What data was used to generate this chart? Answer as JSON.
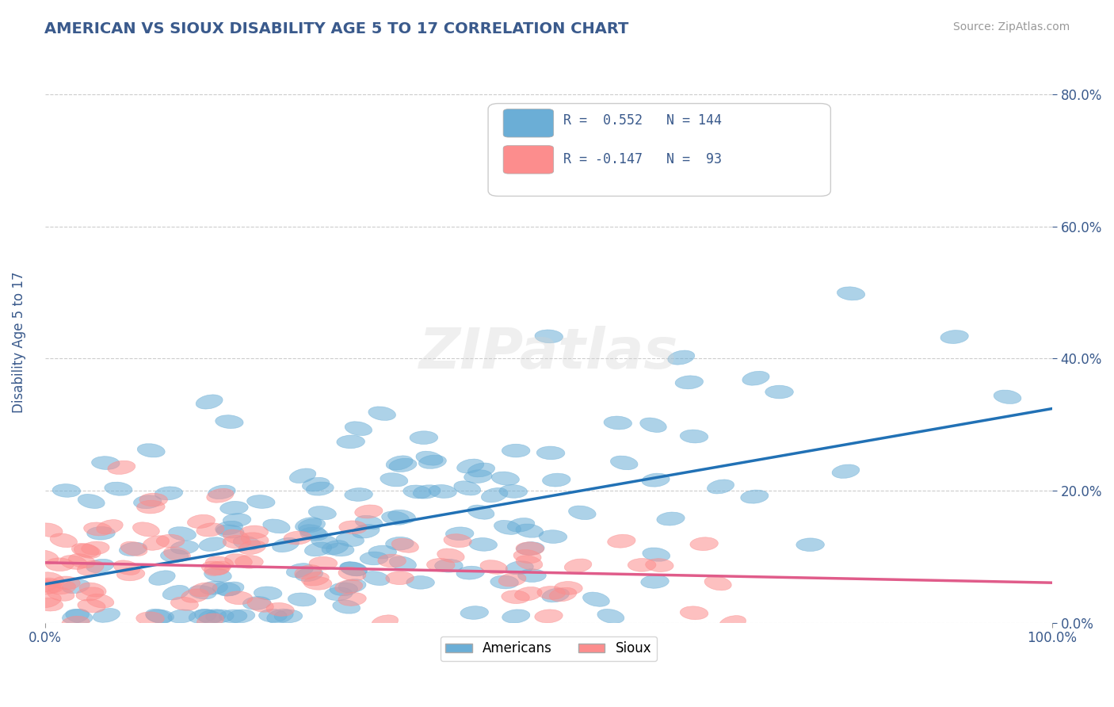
{
  "title": "AMERICAN VS SIOUX DISABILITY AGE 5 TO 17 CORRELATION CHART",
  "source": "Source: ZipAtlas.com",
  "ylabel": "Disability Age 5 to 17",
  "xlim": [
    0,
    1.0
  ],
  "ylim": [
    0,
    0.85
  ],
  "yticks": [
    0.0,
    0.2,
    0.4,
    0.6,
    0.8
  ],
  "ytick_labels": [
    "0.0%",
    "20.0%",
    "40.0%",
    "60.0%",
    "80.0%"
  ],
  "xtick_labels": [
    "0.0%",
    "100.0%"
  ],
  "color_american": "#6baed6",
  "color_sioux": "#fc8d8d",
  "color_trend_american": "#2171b5",
  "color_trend_sioux": "#e05c8a",
  "watermark": "ZIPatlas",
  "title_color": "#3a5a8c",
  "axis_color": "#3a5a8c",
  "grid_color": "#cccccc",
  "background_color": "#ffffff",
  "american_R": 0.552,
  "american_N": 144,
  "sioux_R": -0.147,
  "sioux_N": 93,
  "seed": 42
}
